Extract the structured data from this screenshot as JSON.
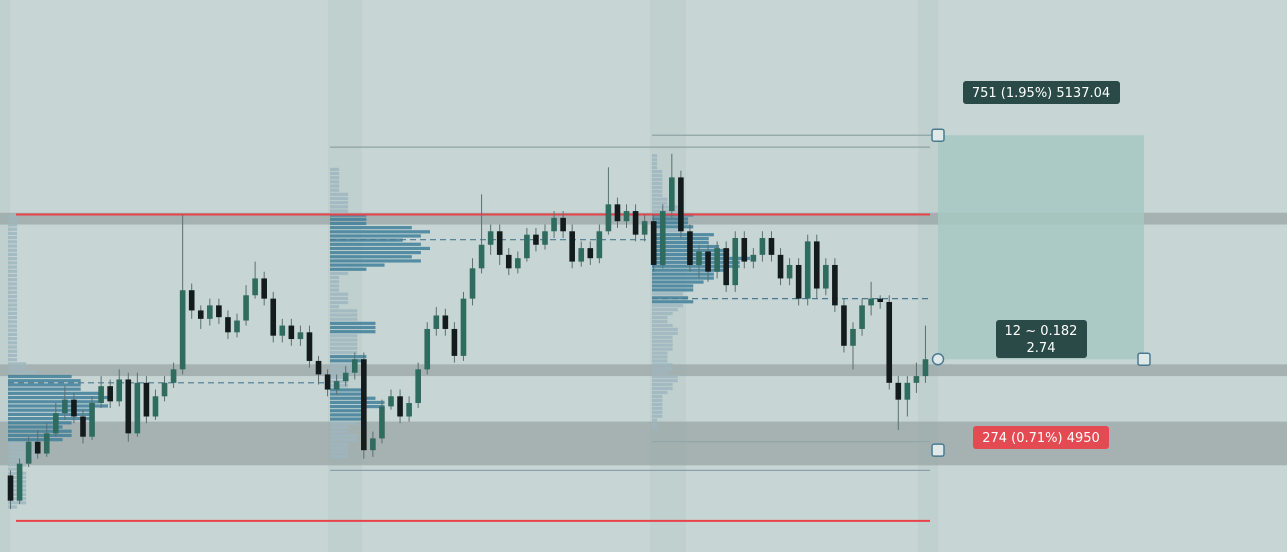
{
  "colors": {
    "background": "#c7d6d4",
    "session_band": "#bfd0ce",
    "zone": "#9aa6a6",
    "bull": "#2f6b5f",
    "bear": "#141b1d",
    "wick": "#5a6f70",
    "level_red": "#e8434b",
    "volume_profile": "#3f7f9a",
    "volume_profile_light": "#9fb6c0",
    "target_box": "#a7c8c2",
    "label_dark": "#2a4a47",
    "label_red": "#e44a52",
    "handle": "#4a7a92"
  },
  "position_tool": {
    "target_label": "751 (1.95%) 5137.04",
    "stop_label": "274 (0.71%) 4950",
    "ratio_line1": "12 ~ 0.182",
    "ratio_line2": "2.74",
    "target_price": 5137.04,
    "stop_price": 4950
  },
  "chart_data": {
    "type": "candlestick",
    "levels": [
      5090,
      4908
    ],
    "zones": [
      [
        5084,
        5091
      ],
      [
        4994,
        5001
      ],
      [
        4941,
        4967
      ]
    ],
    "ylim": [
      4902,
      5155
    ],
    "candles": [
      [
        4935,
        4920,
        4938,
        4915
      ],
      [
        4920,
        4942,
        4945,
        4918
      ],
      [
        4942,
        4955,
        4958,
        4940
      ],
      [
        4955,
        4948,
        4962,
        4945
      ],
      [
        4948,
        4960,
        4966,
        4946
      ],
      [
        4960,
        4972,
        4978,
        4958
      ],
      [
        4972,
        4980,
        4988,
        4968
      ],
      [
        4980,
        4970,
        4984,
        4966
      ],
      [
        4970,
        4958,
        4974,
        4954
      ],
      [
        4958,
        4978,
        4982,
        4956
      ],
      [
        4978,
        4988,
        4994,
        4975
      ],
      [
        4988,
        4979,
        4992,
        4975
      ],
      [
        4979,
        4992,
        4998,
        4976
      ],
      [
        4992,
        4960,
        4996,
        4955
      ],
      [
        4960,
        4990,
        4996,
        4958
      ],
      [
        4990,
        4970,
        4994,
        4966
      ],
      [
        4970,
        4982,
        4986,
        4968
      ],
      [
        4982,
        4990,
        4994,
        4979
      ],
      [
        4990,
        4998,
        5002,
        4987
      ],
      [
        4998,
        5045,
        5090,
        4995
      ],
      [
        5045,
        5033,
        5049,
        5028
      ],
      [
        5033,
        5028,
        5036,
        5022
      ],
      [
        5028,
        5036,
        5040,
        5024
      ],
      [
        5036,
        5029,
        5040,
        5025
      ],
      [
        5029,
        5020,
        5033,
        5016
      ],
      [
        5020,
        5027,
        5031,
        5017
      ],
      [
        5027,
        5042,
        5048,
        5024
      ],
      [
        5042,
        5052,
        5062,
        5040
      ],
      [
        5052,
        5040,
        5056,
        5036
      ],
      [
        5040,
        5018,
        5044,
        5014
      ],
      [
        5018,
        5024,
        5028,
        5014
      ],
      [
        5024,
        5016,
        5028,
        5012
      ],
      [
        5016,
        5020,
        5024,
        5012
      ],
      [
        5020,
        5003,
        5024,
        4999
      ],
      [
        5003,
        4995,
        5006,
        4989
      ],
      [
        4995,
        4986,
        4998,
        4982
      ],
      [
        4986,
        4991,
        4995,
        4983
      ],
      [
        4991,
        4996,
        5000,
        4988
      ],
      [
        4996,
        5004,
        5008,
        4992
      ],
      [
        5004,
        4950,
        5008,
        4945
      ],
      [
        4950,
        4957,
        4961,
        4946
      ],
      [
        4957,
        4976,
        4980,
        4954
      ],
      [
        4976,
        4982,
        4986,
        4974
      ],
      [
        4982,
        4970,
        4986,
        4966
      ],
      [
        4970,
        4978,
        4982,
        4967
      ],
      [
        4978,
        4998,
        5002,
        4975
      ],
      [
        4998,
        5022,
        5026,
        4995
      ],
      [
        5022,
        5030,
        5035,
        5018
      ],
      [
        5030,
        5022,
        5034,
        5018
      ],
      [
        5022,
        5006,
        5026,
        5002
      ],
      [
        5006,
        5040,
        5044,
        5003
      ],
      [
        5040,
        5058,
        5064,
        5036
      ],
      [
        5058,
        5072,
        5102,
        5055
      ],
      [
        5072,
        5080,
        5084,
        5066
      ],
      [
        5080,
        5066,
        5084,
        5060
      ],
      [
        5066,
        5058,
        5070,
        5054
      ],
      [
        5058,
        5064,
        5068,
        5055
      ],
      [
        5064,
        5078,
        5082,
        5062
      ],
      [
        5078,
        5072,
        5082,
        5068
      ],
      [
        5072,
        5080,
        5084,
        5069
      ],
      [
        5080,
        5088,
        5092,
        5076
      ],
      [
        5088,
        5080,
        5092,
        5076
      ],
      [
        5080,
        5062,
        5084,
        5058
      ],
      [
        5062,
        5070,
        5074,
        5059
      ],
      [
        5070,
        5064,
        5074,
        5060
      ],
      [
        5064,
        5080,
        5084,
        5061
      ],
      [
        5080,
        5096,
        5118,
        5078
      ],
      [
        5096,
        5086,
        5100,
        5082
      ],
      [
        5086,
        5092,
        5096,
        5082
      ],
      [
        5092,
        5078,
        5096,
        5074
      ],
      [
        5078,
        5086,
        5090,
        5074
      ],
      [
        5086,
        5060,
        5090,
        5056
      ],
      [
        5060,
        5092,
        5096,
        5058
      ],
      [
        5092,
        5112,
        5126,
        5088
      ],
      [
        5112,
        5080,
        5116,
        5076
      ],
      [
        5080,
        5060,
        5084,
        5056
      ],
      [
        5060,
        5068,
        5072,
        5052
      ],
      [
        5068,
        5056,
        5072,
        5050
      ],
      [
        5056,
        5070,
        5074,
        5052
      ],
      [
        5070,
        5048,
        5074,
        5044
      ],
      [
        5048,
        5076,
        5080,
        5044
      ],
      [
        5076,
        5062,
        5080,
        5058
      ],
      [
        5062,
        5066,
        5070,
        5058
      ],
      [
        5066,
        5076,
        5080,
        5062
      ],
      [
        5076,
        5066,
        5080,
        5062
      ],
      [
        5066,
        5052,
        5070,
        5048
      ],
      [
        5052,
        5060,
        5064,
        5048
      ],
      [
        5060,
        5040,
        5064,
        5036
      ],
      [
        5040,
        5074,
        5078,
        5036
      ],
      [
        5074,
        5046,
        5078,
        5040
      ],
      [
        5046,
        5060,
        5064,
        5042
      ],
      [
        5060,
        5036,
        5064,
        5032
      ],
      [
        5036,
        5012,
        5040,
        5008
      ],
      [
        5012,
        5022,
        5026,
        4998
      ],
      [
        5022,
        5036,
        5040,
        5018
      ],
      [
        5036,
        5040,
        5050,
        5030
      ],
      [
        5040,
        5038,
        5042,
        5034
      ],
      [
        5038,
        4990,
        5042,
        4986
      ],
      [
        4990,
        4980,
        4994,
        4962
      ],
      [
        4980,
        4990,
        4994,
        4970
      ],
      [
        4990,
        4994,
        5002,
        4984
      ],
      [
        4994,
        5004,
        5024,
        4990
      ]
    ]
  }
}
